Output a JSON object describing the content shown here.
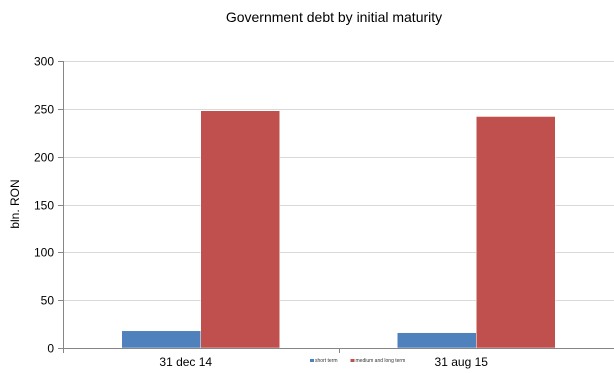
{
  "chart_data": {
    "type": "bar",
    "title": "Government debt by initial maturity",
    "xlabel": "",
    "ylabel": "bln. RON",
    "categories": [
      "31 dec 14",
      "31 aug 15"
    ],
    "series": [
      {
        "name": "short term",
        "color": "#4f81bd",
        "values": [
          18,
          16
        ]
      },
      {
        "name": "medium and long term",
        "color": "#c0504d",
        "values": [
          248,
          242
        ]
      }
    ],
    "ylim": [
      0,
      300
    ],
    "yticks": [
      0,
      50,
      100,
      150,
      200,
      250,
      300
    ],
    "grid": true,
    "legend": "bottom"
  }
}
